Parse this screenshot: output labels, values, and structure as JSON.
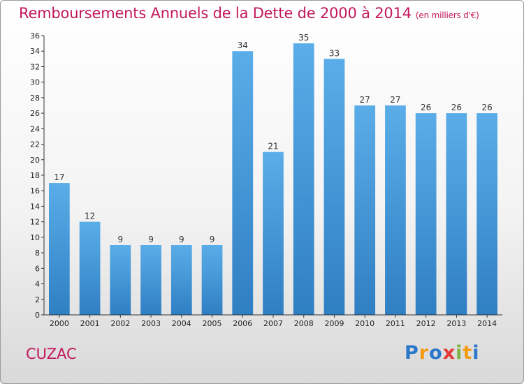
{
  "chart_data": {
    "type": "bar",
    "title": "Remboursements Annuels de la Dette de 2000 à 2014",
    "unit_note": "(en milliers d'€)",
    "categories": [
      "2000",
      "2001",
      "2002",
      "2003",
      "2004",
      "2005",
      "2006",
      "2007",
      "2008",
      "2009",
      "2010",
      "2011",
      "2012",
      "2013",
      "2014"
    ],
    "values": [
      17,
      12,
      9,
      9,
      9,
      9,
      34,
      21,
      35,
      33,
      27,
      27,
      26,
      26,
      26
    ],
    "ylim": [
      0,
      36
    ],
    "yticks": [
      0,
      2,
      4,
      6,
      8,
      10,
      12,
      14,
      16,
      18,
      20,
      22,
      24,
      26,
      28,
      30,
      32,
      34,
      36
    ],
    "xlabel": "",
    "ylabel": "",
    "grid": false,
    "bar_color": "#4a9fe0"
  },
  "location": "CUZAC",
  "brand": {
    "letters": [
      "P",
      "r",
      "o",
      "x",
      "i",
      "t",
      "i"
    ],
    "colors": [
      "#2a77c9",
      "#f39c12",
      "#2a77c9",
      "#e53935",
      "#7cb342",
      "#f39c12",
      "#2a77c9"
    ]
  },
  "colors": {
    "title": "#c2185b"
  }
}
